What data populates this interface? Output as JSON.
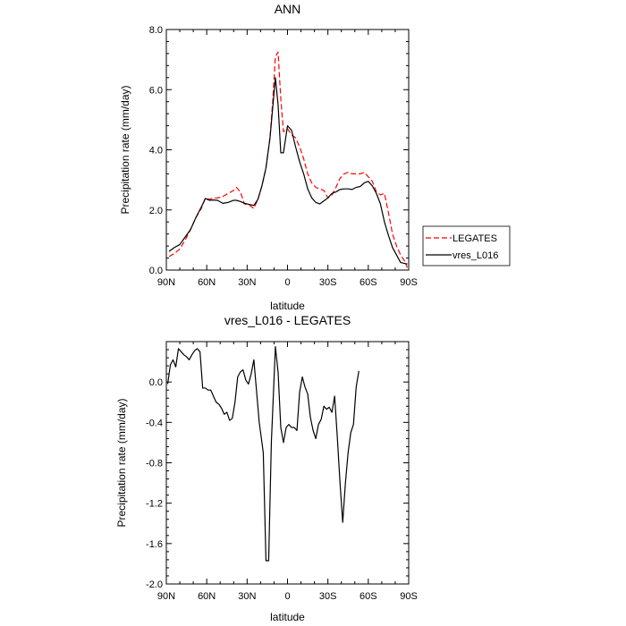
{
  "chart_data": [
    {
      "type": "line",
      "title": "ANN",
      "xlabel": "latitude",
      "ylabel": "Precipitation rate (mm/day)",
      "xlim": [
        90,
        -90
      ],
      "ylim": [
        0,
        8
      ],
      "x_ticks": [
        {
          "value": 90,
          "label": "90N"
        },
        {
          "value": 60,
          "label": "60N"
        },
        {
          "value": 30,
          "label": "30N"
        },
        {
          "value": 0,
          "label": "0"
        },
        {
          "value": -30,
          "label": "30S"
        },
        {
          "value": -60,
          "label": "60S"
        },
        {
          "value": -90,
          "label": "90S"
        }
      ],
      "y_ticks": [
        {
          "value": 0,
          "label": "0.0"
        },
        {
          "value": 2,
          "label": "2.0"
        },
        {
          "value": 4,
          "label": "4.0"
        },
        {
          "value": 6,
          "label": "6.0"
        },
        {
          "value": 8,
          "label": "8.0"
        }
      ],
      "legend_position": "right",
      "series": [
        {
          "name": "LEGATES",
          "color": "#ff0000",
          "dash": "dashed",
          "points": [
            [
              88,
              0.45
            ],
            [
              84,
              0.55
            ],
            [
              80,
              0.7
            ],
            [
              76,
              1.0
            ],
            [
              72,
              1.35
            ],
            [
              68,
              1.75
            ],
            [
              64,
              2.05
            ],
            [
              61,
              2.4
            ],
            [
              58,
              2.35
            ],
            [
              55,
              2.4
            ],
            [
              52,
              2.4
            ],
            [
              48,
              2.45
            ],
            [
              44,
              2.55
            ],
            [
              40,
              2.65
            ],
            [
              38,
              2.75
            ],
            [
              35,
              2.6
            ],
            [
              32,
              2.2
            ],
            [
              28,
              2.15
            ],
            [
              25,
              2.05
            ],
            [
              22,
              2.35
            ],
            [
              19,
              2.8
            ],
            [
              16,
              3.4
            ],
            [
              13,
              4.4
            ],
            [
              11,
              5.6
            ],
            [
              9,
              7.1
            ],
            [
              7,
              7.25
            ],
            [
              5,
              5.7
            ],
            [
              3,
              4.6
            ],
            [
              0,
              4.7
            ],
            [
              -3,
              4.5
            ],
            [
              -6,
              4.4
            ],
            [
              -9,
              4.1
            ],
            [
              -12,
              3.7
            ],
            [
              -15,
              3.2
            ],
            [
              -18,
              2.9
            ],
            [
              -21,
              2.75
            ],
            [
              -24,
              2.7
            ],
            [
              -27,
              2.65
            ],
            [
              -30,
              2.4
            ],
            [
              -33,
              2.5
            ],
            [
              -36,
              2.75
            ],
            [
              -39,
              3.05
            ],
            [
              -42,
              3.2
            ],
            [
              -45,
              3.25
            ],
            [
              -48,
              3.2
            ],
            [
              -51,
              3.2
            ],
            [
              -54,
              3.2
            ],
            [
              -57,
              3.25
            ],
            [
              -60,
              3.1
            ],
            [
              -63,
              2.95
            ],
            [
              -66,
              2.6
            ],
            [
              -69,
              2.5
            ],
            [
              -72,
              2.55
            ],
            [
              -75,
              1.9
            ],
            [
              -78,
              1.2
            ],
            [
              -81,
              0.8
            ],
            [
              -84,
              0.5
            ],
            [
              -87,
              0.3
            ],
            [
              -89,
              0.08
            ]
          ]
        },
        {
          "name": "vres_L016",
          "color": "#000000",
          "dash": "solid",
          "points": [
            [
              88,
              0.62
            ],
            [
              84,
              0.75
            ],
            [
              80,
              0.85
            ],
            [
              76,
              1.1
            ],
            [
              72,
              1.35
            ],
            [
              68,
              1.75
            ],
            [
              64,
              2.1
            ],
            [
              61,
              2.38
            ],
            [
              58,
              2.32
            ],
            [
              55,
              2.33
            ],
            [
              52,
              2.32
            ],
            [
              48,
              2.22
            ],
            [
              44,
              2.25
            ],
            [
              40,
              2.32
            ],
            [
              38,
              2.32
            ],
            [
              35,
              2.28
            ],
            [
              32,
              2.22
            ],
            [
              28,
              2.18
            ],
            [
              25,
              2.15
            ],
            [
              22,
              2.35
            ],
            [
              19,
              2.8
            ],
            [
              16,
              3.4
            ],
            [
              13,
              4.4
            ],
            [
              11,
              5.4
            ],
            [
              9,
              6.4
            ],
            [
              7,
              5.5
            ],
            [
              5,
              3.9
            ],
            [
              3,
              3.9
            ],
            [
              0,
              4.8
            ],
            [
              -3,
              4.65
            ],
            [
              -6,
              4.1
            ],
            [
              -9,
              3.6
            ],
            [
              -12,
              3.2
            ],
            [
              -15,
              2.7
            ],
            [
              -18,
              2.4
            ],
            [
              -21,
              2.25
            ],
            [
              -24,
              2.2
            ],
            [
              -27,
              2.3
            ],
            [
              -30,
              2.4
            ],
            [
              -33,
              2.55
            ],
            [
              -36,
              2.6
            ],
            [
              -39,
              2.68
            ],
            [
              -42,
              2.7
            ],
            [
              -45,
              2.7
            ],
            [
              -48,
              2.68
            ],
            [
              -51,
              2.75
            ],
            [
              -54,
              2.78
            ],
            [
              -57,
              2.9
            ],
            [
              -60,
              2.95
            ],
            [
              -63,
              2.8
            ],
            [
              -66,
              2.55
            ],
            [
              -69,
              2.2
            ],
            [
              -72,
              1.6
            ],
            [
              -75,
              1.15
            ],
            [
              -78,
              0.75
            ],
            [
              -81,
              0.5
            ],
            [
              -84,
              0.25
            ],
            [
              -87,
              0.22
            ],
            [
              -89,
              0.2
            ]
          ]
        }
      ]
    },
    {
      "type": "line",
      "title": "vres_L016 - LEGATES",
      "xlabel": "latitude",
      "ylabel": "Precipitation rate (mm/day)",
      "xlim": [
        90,
        -90
      ],
      "ylim": [
        -2.0,
        0.4
      ],
      "x_ticks": [
        {
          "value": 90,
          "label": "90N"
        },
        {
          "value": 60,
          "label": "60N"
        },
        {
          "value": 30,
          "label": "30N"
        },
        {
          "value": 0,
          "label": "0"
        },
        {
          "value": -30,
          "label": "30S"
        },
        {
          "value": -60,
          "label": "60S"
        },
        {
          "value": -90,
          "label": "90S"
        }
      ],
      "y_ticks": [
        {
          "value": 0.0,
          "label": "0.0"
        },
        {
          "value": -0.4,
          "label": "-0.4"
        },
        {
          "value": -0.8,
          "label": "-0.8"
        },
        {
          "value": -1.2,
          "label": "-1.2"
        },
        {
          "value": -1.6,
          "label": "-1.6"
        },
        {
          "value": -2.0,
          "label": "-2.0"
        }
      ],
      "series": [
        {
          "name": "",
          "color": "#000000",
          "dash": "solid",
          "points": [
            [
              89,
              -0.02
            ],
            [
              87,
              0.17
            ],
            [
              85,
              0.22
            ],
            [
              83,
              0.15
            ],
            [
              81,
              0.33
            ],
            [
              79,
              0.3
            ],
            [
              77,
              0.27
            ],
            [
              75,
              0.25
            ],
            [
              73,
              0.22
            ],
            [
              71,
              0.27
            ],
            [
              69,
              0.31
            ],
            [
              67,
              0.33
            ],
            [
              65,
              0.3
            ],
            [
              63,
              -0.06
            ],
            [
              61,
              -0.06
            ],
            [
              59,
              -0.08
            ],
            [
              57,
              -0.08
            ],
            [
              55,
              -0.14
            ],
            [
              53,
              -0.2
            ],
            [
              51,
              -0.22
            ],
            [
              49,
              -0.26
            ],
            [
              47,
              -0.32
            ],
            [
              45,
              -0.3
            ],
            [
              43,
              -0.38
            ],
            [
              41,
              -0.36
            ],
            [
              39,
              -0.2
            ],
            [
              37,
              0.05
            ],
            [
              35,
              0.1
            ],
            [
              33,
              0.12
            ],
            [
              31,
              0.02
            ],
            [
              29,
              -0.02
            ],
            [
              27,
              0.08
            ],
            [
              25,
              0.22
            ],
            [
              21,
              -0.4
            ],
            [
              18,
              -0.7
            ],
            [
              16,
              -1.77
            ],
            [
              14,
              -1.77
            ],
            [
              12,
              -0.6
            ],
            [
              9,
              0.35
            ],
            [
              7,
              0.1
            ],
            [
              5,
              -0.45
            ],
            [
              3,
              -0.6
            ],
            [
              1,
              -0.45
            ],
            [
              -1,
              -0.42
            ],
            [
              -3,
              -0.45
            ],
            [
              -5,
              -0.45
            ],
            [
              -7,
              -0.48
            ],
            [
              -9,
              -0.1
            ],
            [
              -11,
              0.05
            ],
            [
              -13,
              -0.05
            ],
            [
              -15,
              -0.12
            ],
            [
              -17,
              -0.35
            ],
            [
              -19,
              -0.48
            ],
            [
              -21,
              -0.56
            ],
            [
              -23,
              -0.42
            ],
            [
              -25,
              -0.37
            ],
            [
              -27,
              -0.24
            ],
            [
              -29,
              -0.27
            ],
            [
              -31,
              -0.25
            ],
            [
              -33,
              -0.3
            ],
            [
              -35,
              -0.14
            ],
            [
              -37,
              -0.55
            ],
            [
              -39,
              -1.0
            ],
            [
              -41,
              -1.39
            ],
            [
              -43,
              -1.0
            ],
            [
              -45,
              -0.7
            ],
            [
              -47,
              -0.5
            ],
            [
              -49,
              -0.42
            ],
            [
              -51,
              -0.05
            ],
            [
              -53,
              0.11
            ]
          ]
        }
      ]
    }
  ]
}
